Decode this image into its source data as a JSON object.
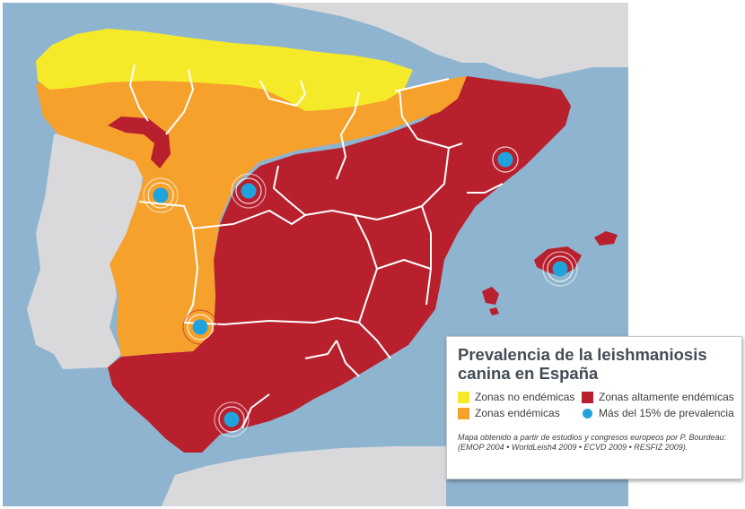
{
  "map": {
    "colors": {
      "sea": "#8fb4cf",
      "land_other": "#d9d9db",
      "non_endemic": "#f4ea2a",
      "endemic": "#f6a12c",
      "highly_endemic": "#b8202e",
      "prevalence_dot": "#20a3dc",
      "borders": "#ffffff"
    },
    "markers_icon": "concentric-circle-icon"
  },
  "legend": {
    "title_line1": "Prevalencia de la leishmaniosis",
    "title_line2": "canina en España",
    "items": [
      {
        "label": "Zonas no endémicas",
        "color": "#f4ea2a",
        "icon": "square-swatch-icon"
      },
      {
        "label": "Zonas altamente endémicas",
        "color": "#b8202e",
        "icon": "square-swatch-icon"
      },
      {
        "label": "Zonas endémicas",
        "color": "#f6a12c",
        "icon": "square-swatch-icon"
      },
      {
        "label": "Más del 15% de prevalencia",
        "color": "#20a3dc",
        "icon": "circle-dot-icon"
      }
    ],
    "source_line1": "Mapa obtenido a partir de estudios y congresos europeos por P. Bourdeau:",
    "source_line2": "(EMOP 2004 • WorldLeish4 2009 • ECVD 2009 • RESFIZ 2009)."
  }
}
